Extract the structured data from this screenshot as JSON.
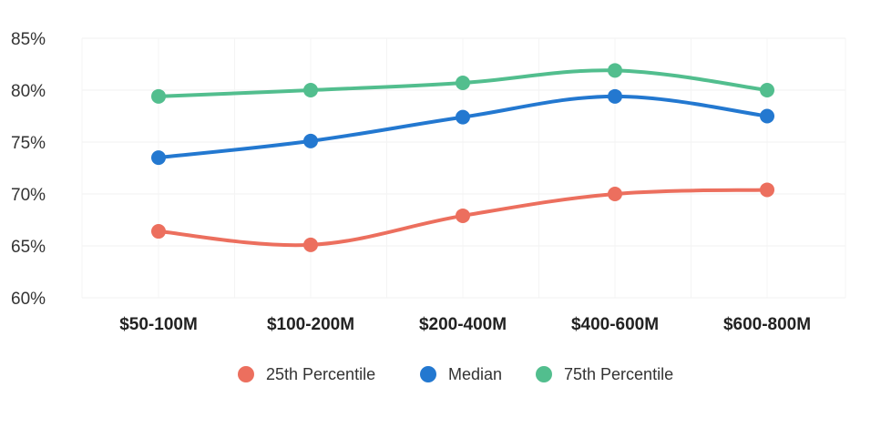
{
  "chart_data": {
    "type": "line",
    "categories": [
      "$50-100M",
      "$100-200M",
      "$200-400M",
      "$400-600M",
      "$600-800M"
    ],
    "ylim": [
      60,
      85
    ],
    "yticks": [
      60,
      65,
      70,
      75,
      80,
      85
    ],
    "ytick_labels": [
      "60%",
      "65%",
      "70%",
      "75%",
      "80%",
      "85%"
    ],
    "grid": true,
    "legend_position": "bottom",
    "smooth": true,
    "series": [
      {
        "name": "25th Percentile",
        "color": "#EC6F5E",
        "values": [
          66.4,
          65.1,
          67.9,
          70.0,
          70.4
        ]
      },
      {
        "name": "Median",
        "color": "#2378D0",
        "values": [
          73.5,
          75.1,
          77.4,
          79.4,
          77.5
        ]
      },
      {
        "name": "75th Percentile",
        "color": "#52BE8E",
        "values": [
          79.4,
          80.0,
          80.7,
          81.9,
          80.0
        ]
      }
    ]
  }
}
